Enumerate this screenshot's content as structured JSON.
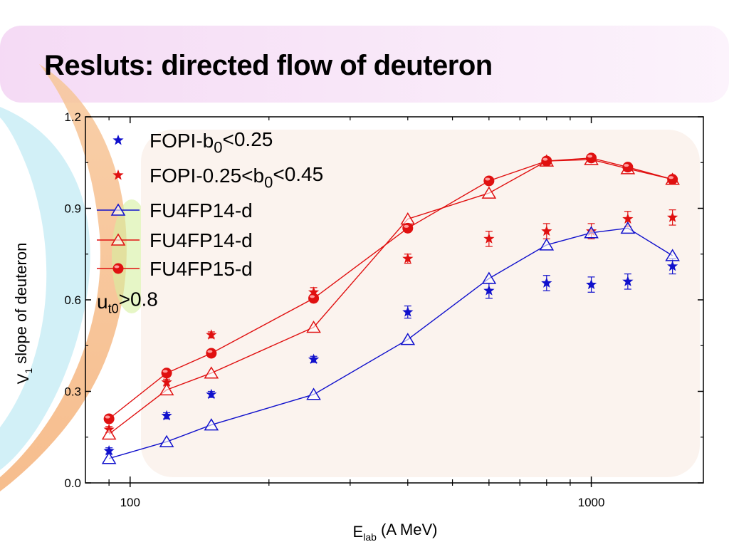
{
  "slide": {
    "title": "Resluts: directed flow of deuteron"
  },
  "colors": {
    "blue": "#1010cc",
    "red": "#e01010",
    "panel": "#fbf3ee",
    "top_band": "#f7e3f7"
  },
  "chart_data": {
    "type": "scatter",
    "x_scale": "log",
    "xlim": [
      80,
      1750
    ],
    "ylim": [
      0.0,
      1.2
    ],
    "x_ticks": [
      100,
      1000
    ],
    "x_tick_labels": [
      "100",
      "1000"
    ],
    "y_ticks": [
      0.0,
      0.3,
      0.6,
      0.9,
      1.2
    ],
    "y_tick_labels": [
      "0.0",
      "0.3",
      "0.6",
      "0.9",
      "1.2"
    ],
    "xlabel": {
      "main": "E",
      "sub": "lab",
      "rest": " (A MeV)"
    },
    "ylabel": {
      "main": "V",
      "sub": "1",
      "rest": " slope of deuteron"
    },
    "annotation": {
      "main": "u",
      "sub": "t0",
      "rest": ">0.8"
    },
    "legend_position": "top-left",
    "series": [
      {
        "name": {
          "main": "FOPI-b",
          "sub": "0",
          "rest": "<0.25"
        },
        "marker": "star",
        "color": "blue",
        "line": false,
        "x": [
          90,
          120,
          150,
          250,
          400,
          600,
          800,
          1000,
          1200,
          1500
        ],
        "y": [
          0.105,
          0.22,
          0.29,
          0.405,
          0.56,
          0.63,
          0.655,
          0.65,
          0.66,
          0.71
        ],
        "err": [
          0.01,
          0.01,
          0.01,
          0.01,
          0.02,
          0.025,
          0.025,
          0.025,
          0.025,
          0.025
        ]
      },
      {
        "name": {
          "main": "FOPI-0.25<b",
          "sub": "0",
          "rest": "<0.45"
        },
        "marker": "star",
        "color": "red",
        "line": false,
        "x": [
          90,
          120,
          150,
          250,
          400,
          600,
          800,
          1000,
          1200,
          1500
        ],
        "y": [
          0.175,
          0.33,
          0.485,
          0.625,
          0.735,
          0.8,
          0.825,
          0.825,
          0.865,
          0.87
        ],
        "err": [
          0.01,
          0.01,
          0.01,
          0.015,
          0.015,
          0.025,
          0.025,
          0.025,
          0.025,
          0.025
        ]
      },
      {
        "name": {
          "main": "FU4FP14-d",
          "sub": "",
          "rest": ""
        },
        "marker": "triangle",
        "color": "blue",
        "line": true,
        "x": [
          90,
          120,
          150,
          250,
          400,
          600,
          800,
          1000,
          1200,
          1500
        ],
        "y": [
          0.08,
          0.135,
          0.19,
          0.29,
          0.47,
          0.67,
          0.78,
          0.82,
          0.835,
          0.745
        ],
        "err": []
      },
      {
        "name": {
          "main": "FU4FP14-d",
          "sub": "",
          "rest": ""
        },
        "marker": "triangle",
        "color": "red",
        "line": true,
        "x": [
          90,
          120,
          150,
          250,
          400,
          600,
          800,
          1000,
          1200,
          1500
        ],
        "y": [
          0.16,
          0.305,
          0.36,
          0.51,
          0.865,
          0.95,
          1.055,
          1.06,
          1.03,
          0.995
        ],
        "err": []
      },
      {
        "name": {
          "main": "FU4FP15-d",
          "sub": "",
          "rest": ""
        },
        "marker": "ball",
        "color": "red",
        "line": true,
        "x": [
          90,
          120,
          150,
          250,
          400,
          600,
          800,
          1000,
          1200,
          1500
        ],
        "y": [
          0.21,
          0.36,
          0.425,
          0.605,
          0.835,
          0.99,
          1.055,
          1.065,
          1.035,
          0.995
        ],
        "err": []
      }
    ]
  }
}
